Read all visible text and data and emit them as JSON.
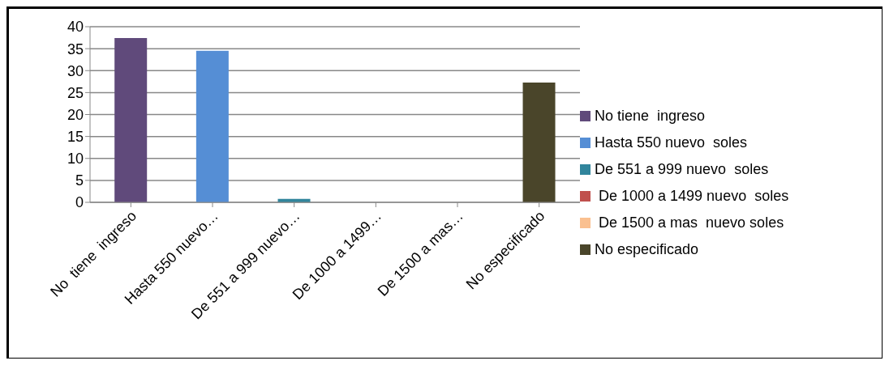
{
  "chart_data": {
    "type": "bar",
    "stacked": true,
    "categories": [
      "No  tiene  ingreso",
      "Hasta 550 nuevo…",
      "De 551 a 999 nuevo…",
      "De 1000 a 1499…",
      "De 1500 a mas…",
      "No especificado"
    ],
    "series": [
      {
        "name": "No tiene  ingreso",
        "color": "#604a7b",
        "values": [
          37.4,
          null,
          null,
          null,
          null,
          null
        ]
      },
      {
        "name": "Hasta 550 nuevo  soles",
        "color": "#558ed5",
        "values": [
          null,
          34.5,
          null,
          null,
          null,
          null
        ]
      },
      {
        "name": "De 551 a 999 nuevo  soles",
        "color": "#31859c",
        "values": [
          null,
          null,
          0.8,
          null,
          null,
          null
        ]
      },
      {
        "name": " De 1000 a 1499 nuevo  soles",
        "color": "#c0504d",
        "values": [
          null,
          null,
          null,
          0,
          null,
          null
        ]
      },
      {
        "name": " De 1500 a mas  nuevo soles",
        "color": "#fac090",
        "values": [
          null,
          null,
          null,
          null,
          0,
          null
        ]
      },
      {
        "name": "No especificado",
        "color": "#4a452a",
        "values": [
          null,
          null,
          null,
          null,
          null,
          27.3
        ]
      }
    ],
    "ylim": [
      0,
      40
    ],
    "yticks": [
      0,
      5,
      10,
      15,
      20,
      25,
      30,
      35,
      40
    ],
    "grid": "y",
    "legend": "right"
  }
}
